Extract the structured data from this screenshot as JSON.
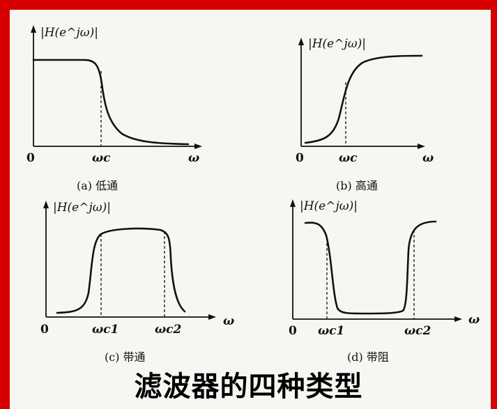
{
  "title": "滤波器的四种类型",
  "panels": [
    {
      "id": "a",
      "y_axis_label": "|H(e^jω)|",
      "origin": "0",
      "x_axis_label": "ω",
      "cutoffs": [
        "ωc"
      ],
      "caption": "(a) 低通"
    },
    {
      "id": "b",
      "y_axis_label": "|H(e^jω)|",
      "origin": "0",
      "x_axis_label": "ω",
      "cutoffs": [
        "ωc"
      ],
      "caption": "(b) 高通"
    },
    {
      "id": "c",
      "y_axis_label": "|H(e^jω)|",
      "origin": "0",
      "x_axis_label": "ω",
      "cutoffs": [
        "ωc1",
        "ωc2"
      ],
      "caption": "(c) 带通"
    },
    {
      "id": "d",
      "y_axis_label": "|H(e^jω)|",
      "origin": "0",
      "x_axis_label": "ω",
      "cutoffs": [
        "ωc1",
        "ωc2"
      ],
      "caption": "(d) 带阻"
    }
  ]
}
